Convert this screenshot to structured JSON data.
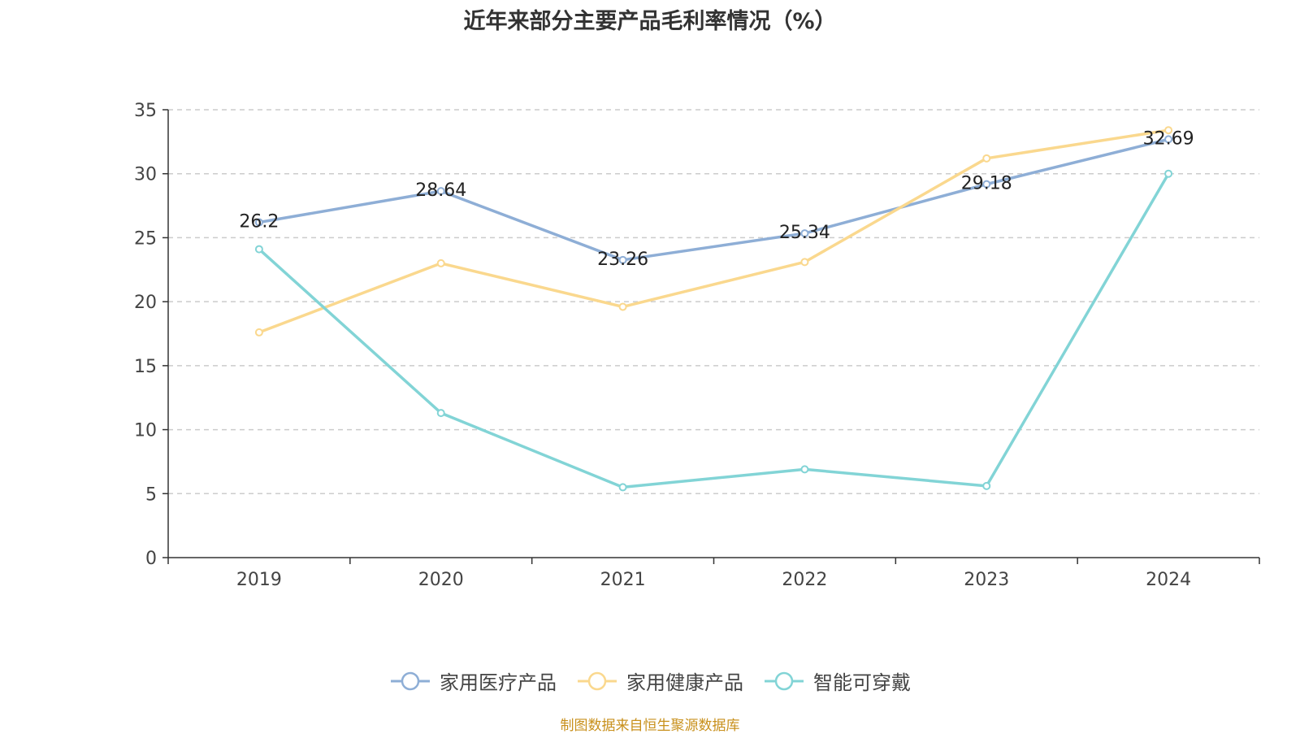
{
  "chart_data": {
    "type": "line",
    "title": "近年来部分主要产品毛利率情况（%）",
    "categories": [
      "2019",
      "2020",
      "2021",
      "2022",
      "2023",
      "2024"
    ],
    "ylim": [
      0,
      35
    ],
    "yticks": [
      0,
      5,
      10,
      15,
      20,
      25,
      30,
      35
    ],
    "grid": true,
    "legend_position": "bottom-center",
    "series": [
      {
        "name": "家用医疗产品",
        "color": "#8eaed6",
        "values": [
          26.2,
          28.64,
          23.26,
          25.34,
          29.18,
          32.69
        ],
        "labeled": true
      },
      {
        "name": "家用健康产品",
        "color": "#fad88e",
        "values": [
          17.6,
          23.0,
          19.6,
          23.1,
          31.2,
          33.4
        ],
        "labeled": false
      },
      {
        "name": "智能可穿戴",
        "color": "#82d4d6",
        "values": [
          24.1,
          11.3,
          5.5,
          6.9,
          5.6,
          30.0
        ],
        "labeled": false
      }
    ]
  },
  "source": "制图数据来自恒生聚源数据库"
}
